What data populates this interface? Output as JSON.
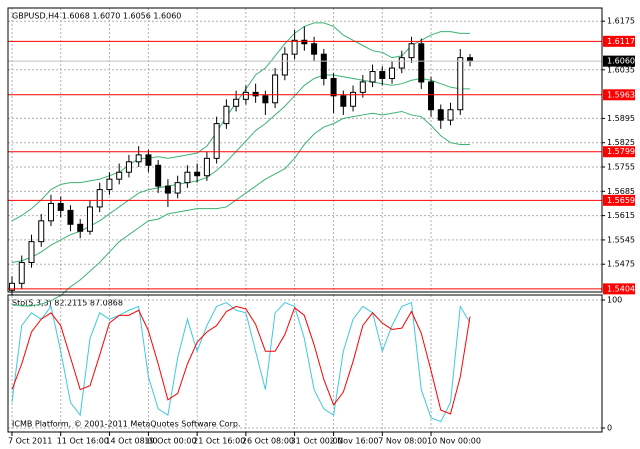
{
  "chart_data": [
    {
      "type": "candlestick",
      "title": "GBPUSD,H4  1.6068 1.6070 1.6056 1.6060",
      "categories": [
        "7 Oct 2011",
        null,
        null,
        null,
        null,
        "11 Oct 16:00",
        null,
        null,
        null,
        null,
        "14 Oct 08:00",
        null,
        null,
        null,
        "19 Oct 00:00",
        null,
        null,
        null,
        null,
        "21 Oct 16:00",
        null,
        null,
        null,
        null,
        "26 Oct 08:00",
        null,
        null,
        null,
        null,
        "31 Oct 00:00",
        null,
        null,
        null,
        "2 Nov 16:00",
        null,
        null,
        null,
        null,
        "7 Nov 08:00",
        null,
        null,
        null,
        null,
        "10 Nov 00:00",
        null,
        null,
        null,
        null
      ],
      "open": [
        1.54,
        1.542,
        1.548,
        1.554,
        1.56,
        1.565,
        1.563,
        1.559,
        1.557,
        1.564,
        1.569,
        1.572,
        1.574,
        1.577,
        1.579,
        1.576,
        1.57,
        1.568,
        1.571,
        1.574,
        1.573,
        1.578,
        1.588,
        1.593,
        1.595,
        1.597,
        1.596,
        1.594,
        1.602,
        1.608,
        1.612,
        1.611,
        1.608,
        1.601,
        1.596,
        1.593,
        1.597,
        1.6,
        1.603,
        1.601,
        1.604,
        1.607,
        1.611,
        1.6,
        1.592,
        1.589,
        1.592,
        1.607
      ],
      "high": [
        1.544,
        1.55,
        1.556,
        1.562,
        1.5675,
        1.567,
        1.5645,
        1.5605,
        1.566,
        1.571,
        1.574,
        1.5765,
        1.579,
        1.5815,
        1.5805,
        1.5775,
        1.572,
        1.573,
        1.576,
        1.5765,
        1.58,
        1.59,
        1.595,
        1.5975,
        1.599,
        1.5995,
        1.5975,
        1.604,
        1.61,
        1.615,
        1.616,
        1.613,
        1.6095,
        1.6025,
        1.5975,
        1.599,
        1.602,
        1.605,
        1.6045,
        1.606,
        1.609,
        1.613,
        1.6125,
        1.6015,
        1.5935,
        1.594,
        1.6095,
        1.608
      ],
      "low": [
        1.538,
        1.5405,
        1.5465,
        1.5525,
        1.5585,
        1.561,
        1.557,
        1.555,
        1.556,
        1.5625,
        1.5675,
        1.5705,
        1.5725,
        1.5755,
        1.574,
        1.568,
        1.564,
        1.5665,
        1.5695,
        1.571,
        1.5715,
        1.5765,
        1.5865,
        1.5915,
        1.5935,
        1.594,
        1.5905,
        1.5925,
        1.6005,
        1.6065,
        1.609,
        1.606,
        1.599,
        1.591,
        1.5905,
        1.5915,
        1.5955,
        1.5985,
        1.599,
        1.5995,
        1.6025,
        1.6055,
        1.598,
        1.59,
        1.5865,
        1.5875,
        1.5905,
        1.6045
      ],
      "close": [
        1.542,
        1.548,
        1.554,
        1.56,
        1.565,
        1.563,
        1.559,
        1.557,
        1.564,
        1.569,
        1.572,
        1.574,
        1.577,
        1.579,
        1.576,
        1.57,
        1.568,
        1.571,
        1.574,
        1.573,
        1.578,
        1.588,
        1.593,
        1.595,
        1.597,
        1.596,
        1.594,
        1.602,
        1.608,
        1.612,
        1.611,
        1.608,
        1.601,
        1.596,
        1.593,
        1.597,
        1.6,
        1.603,
        1.601,
        1.604,
        1.607,
        1.611,
        1.6,
        1.592,
        1.589,
        1.592,
        1.607,
        1.606
      ],
      "candle_color": "#000000",
      "series": [
        {
          "color": "#3cb371",
          "values": [
            1.56,
            1.5615,
            1.5635,
            1.566,
            1.569,
            1.5705,
            1.571,
            1.571,
            1.5715,
            1.572,
            1.573,
            1.574,
            1.576,
            1.578,
            1.578,
            1.5785,
            1.578,
            1.5785,
            1.579,
            1.5795,
            1.5815,
            1.5855,
            1.59,
            1.594,
            1.598,
            1.602,
            1.604,
            1.6075,
            1.611,
            1.614,
            1.616,
            1.617,
            1.617,
            1.616,
            1.6135,
            1.612,
            1.6105,
            1.609,
            1.6085,
            1.607,
            1.6075,
            1.6105,
            1.612,
            1.6135,
            1.6145,
            1.6145,
            1.614,
            1.614
          ]
        },
        {
          "color": "#3cb371",
          "values": [
            1.548,
            1.5485,
            1.5495,
            1.551,
            1.553,
            1.5545,
            1.556,
            1.557,
            1.5585,
            1.56,
            1.562,
            1.564,
            1.566,
            1.568,
            1.569,
            1.5695,
            1.57,
            1.5705,
            1.571,
            1.5715,
            1.5725,
            1.5745,
            1.577,
            1.58,
            1.583,
            1.586,
            1.588,
            1.5905,
            1.593,
            1.596,
            1.599,
            1.601,
            1.602,
            1.602,
            1.6015,
            1.601,
            1.6005,
            1.6,
            1.5995,
            1.599,
            1.5995,
            1.6005,
            1.601,
            1.6005,
            1.5995,
            1.5985,
            1.598,
            1.598
          ]
        },
        {
          "color": "#3cb371",
          "values": [
            1.536,
            1.5355,
            1.5355,
            1.536,
            1.537,
            1.5385,
            1.541,
            1.543,
            1.5455,
            1.548,
            1.551,
            1.554,
            1.556,
            1.558,
            1.56,
            1.5605,
            1.562,
            1.5625,
            1.563,
            1.5635,
            1.5635,
            1.5635,
            1.564,
            1.566,
            1.568,
            1.57,
            1.572,
            1.5735,
            1.575,
            1.578,
            1.582,
            1.585,
            1.587,
            1.588,
            1.5895,
            1.59,
            1.5905,
            1.591,
            1.5905,
            1.591,
            1.5915,
            1.5905,
            1.59,
            1.5875,
            1.5845,
            1.5825,
            1.582,
            1.582
          ]
        }
      ],
      "levels": [
        1.6117,
        1.5963,
        1.5799,
        1.5659,
        1.5404
      ],
      "level_color": "#ff0000",
      "last_price": {
        "value": 1.606,
        "label": "1.6060"
      },
      "ylim": [
        1.5395,
        1.6213
      ],
      "yticks": [
        1.6175,
        1.6035,
        1.5895,
        1.5825,
        1.5755,
        1.5685,
        1.5615,
        1.5545,
        1.5475
      ],
      "grid": true
    },
    {
      "type": "line",
      "title": "Sto(5,3,3) 82.2115 87.0868",
      "annotation": "ICMB Platform, © 2001-2011 MetaQuotes Software Corp.",
      "series": [
        {
          "color": "#40c8e0",
          "values": [
            20,
            80,
            90,
            85,
            95,
            60,
            20,
            10,
            70,
            90,
            85,
            88,
            92,
            95,
            40,
            15,
            10,
            55,
            85,
            60,
            80,
            95,
            98,
            92,
            90,
            60,
            30,
            90,
            98,
            95,
            70,
            30,
            15,
            10,
            60,
            85,
            95,
            90,
            60,
            80,
            95,
            98,
            30,
            8,
            5,
            20,
            95,
            82.2115
          ]
        },
        {
          "color": "#ff0000",
          "values": [
            30,
            50,
            75,
            85,
            90,
            80,
            55,
            30,
            33,
            57,
            82,
            88,
            88,
            92,
            76,
            50,
            22,
            27,
            50,
            67,
            75,
            80,
            91,
            95,
            93,
            81,
            60,
            60,
            73,
            94,
            88,
            65,
            38,
            18,
            28,
            52,
            80,
            90,
            82,
            77,
            78,
            91,
            74,
            45,
            14,
            11,
            40,
            87.0868
          ]
        }
      ],
      "ylim": [
        0,
        100
      ],
      "yticks": [
        100,
        0
      ],
      "grid": true
    }
  ]
}
